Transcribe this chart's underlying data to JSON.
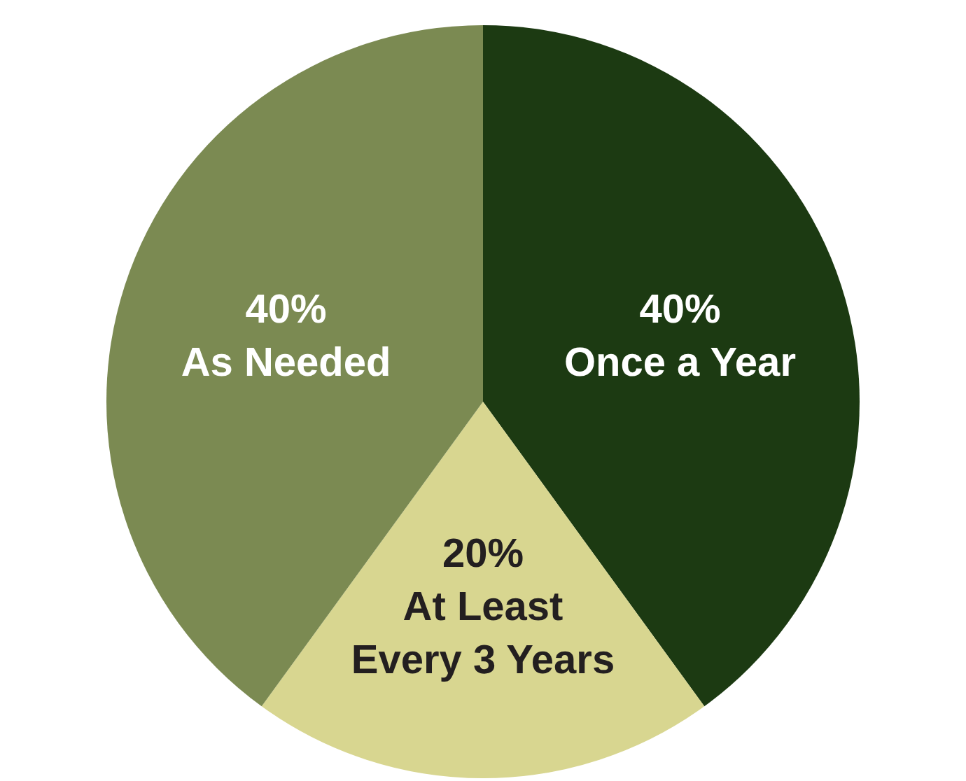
{
  "chart_data": {
    "type": "pie",
    "categories": [
      "Once a Year",
      "At Least Every 3 Years",
      "As Needed"
    ],
    "values": [
      40,
      20,
      40
    ],
    "colors": [
      "#1c3a12",
      "#d8d690",
      "#7b8a52"
    ],
    "value_labels": [
      "40%",
      "20%",
      "40%"
    ],
    "legend": false
  }
}
